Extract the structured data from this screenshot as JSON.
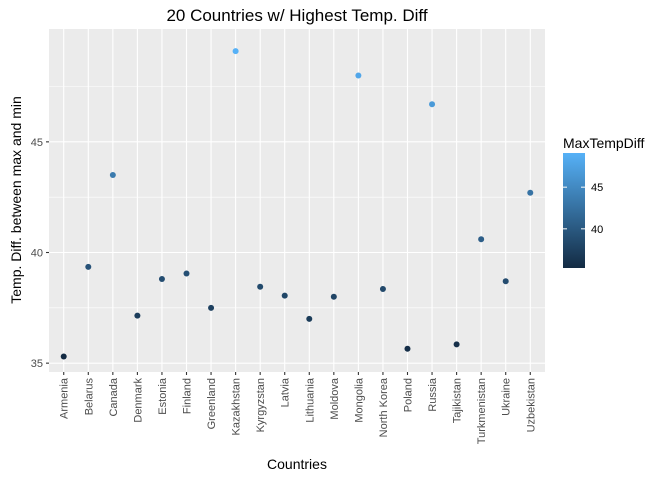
{
  "chart_data": {
    "type": "scatter",
    "title": "20 Countries w/ Highest Temp. Diff",
    "xlabel": "Countries",
    "ylabel": "Temp. Diff. between max and min",
    "categories": [
      "Armenia",
      "Belarus",
      "Canada",
      "Denmark",
      "Estonia",
      "Finland",
      "Greenland",
      "Kazakhstan",
      "Kyrgyzstan",
      "Latvia",
      "Lithuania",
      "Moldova",
      "Mongolia",
      "North Korea",
      "Poland",
      "Russia",
      "Tajikistan",
      "Turkmenistan",
      "Ukraine",
      "Uzbekistan"
    ],
    "values": [
      35.3,
      39.35,
      43.5,
      37.15,
      38.8,
      39.05,
      37.5,
      49.1,
      38.45,
      38.05,
      37.0,
      38.0,
      48.0,
      38.35,
      35.65,
      46.7,
      35.85,
      40.6,
      38.7,
      42.7
    ],
    "ylim": [
      34.6,
      50.1
    ],
    "yticks": [
      35,
      40,
      45
    ],
    "grid": true,
    "color_scale": {
      "title": "MaxTempDiff",
      "low_color": "#132b43",
      "high_color": "#56b1f7",
      "range": [
        35.3,
        49.1
      ],
      "ticks": [
        40,
        45
      ]
    }
  }
}
